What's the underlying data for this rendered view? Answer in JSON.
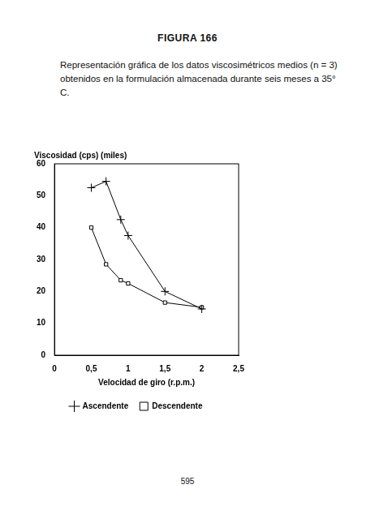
{
  "page": {
    "heading": "FIGURA 166",
    "caption": "Representación gráfica de los datos viscosimétricos medios (n = 3) obtenidos en la formulación almacenada durante seis meses a 35° C.",
    "page_number": "595"
  },
  "chart_data": {
    "type": "line",
    "y_label": "Viscosidad (cps) (miles)",
    "x_label": "Velocidad de giro (r.p.m.)",
    "x": [
      0.5,
      0.7,
      0.9,
      1,
      1.5,
      2
    ],
    "xlim": [
      0,
      2.5
    ],
    "xticks": [
      0,
      {
        "value": 0.5,
        "label": "0,5"
      },
      1,
      {
        "value": 1.5,
        "label": "1,5"
      },
      2,
      {
        "value": 2.5,
        "label": "2,5"
      }
    ],
    "ylim": [
      0,
      60
    ],
    "yticks": [
      0,
      10,
      20,
      30,
      40,
      50,
      60
    ],
    "grid": false,
    "legend": "bottom",
    "series": [
      {
        "name": "Ascendente",
        "color": "#000000",
        "marker": "cross",
        "values": [
          52.5,
          54.5,
          42.5,
          37.5,
          20,
          14.5
        ]
      },
      {
        "name": "Descendente",
        "color": "#000000",
        "marker": "square",
        "values": [
          40,
          28.5,
          23.5,
          22.5,
          16.5,
          15
        ]
      }
    ]
  }
}
